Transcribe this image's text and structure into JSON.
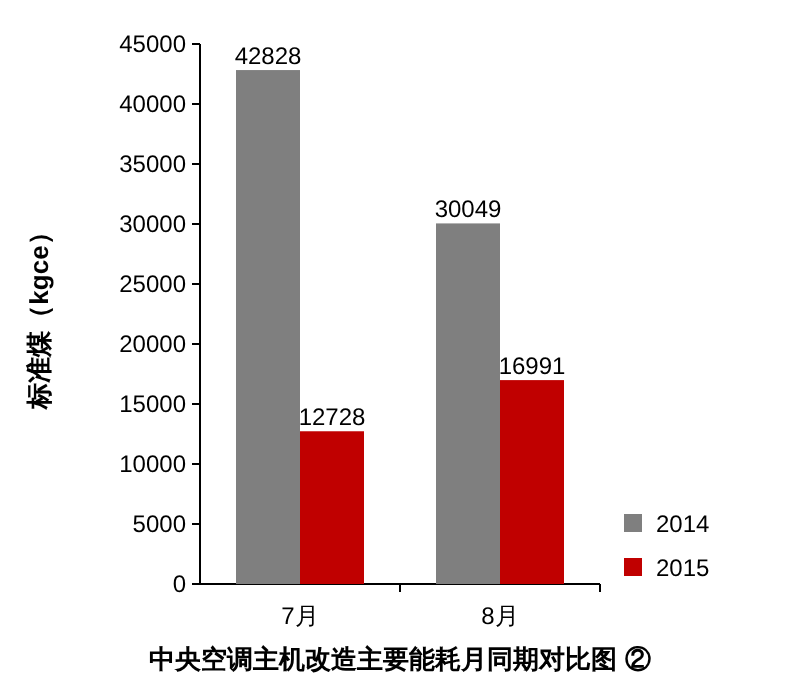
{
  "chart_data": {
    "type": "bar",
    "title": "中央空调主机改造主要能耗月同期对比图 ②",
    "ylabel": "标准煤（kgce）",
    "categories": [
      "7月",
      "8月"
    ],
    "series": [
      {
        "name": "2014",
        "color": "#7f7f7f",
        "values": [
          42828,
          30049
        ]
      },
      {
        "name": "2015",
        "color": "#c00000",
        "values": [
          12728,
          16991
        ]
      }
    ],
    "ylim": [
      0,
      45000
    ],
    "yticks": [
      0,
      5000,
      10000,
      15000,
      20000,
      25000,
      30000,
      35000,
      40000,
      45000
    ],
    "data_labels": true,
    "legend": "right"
  }
}
